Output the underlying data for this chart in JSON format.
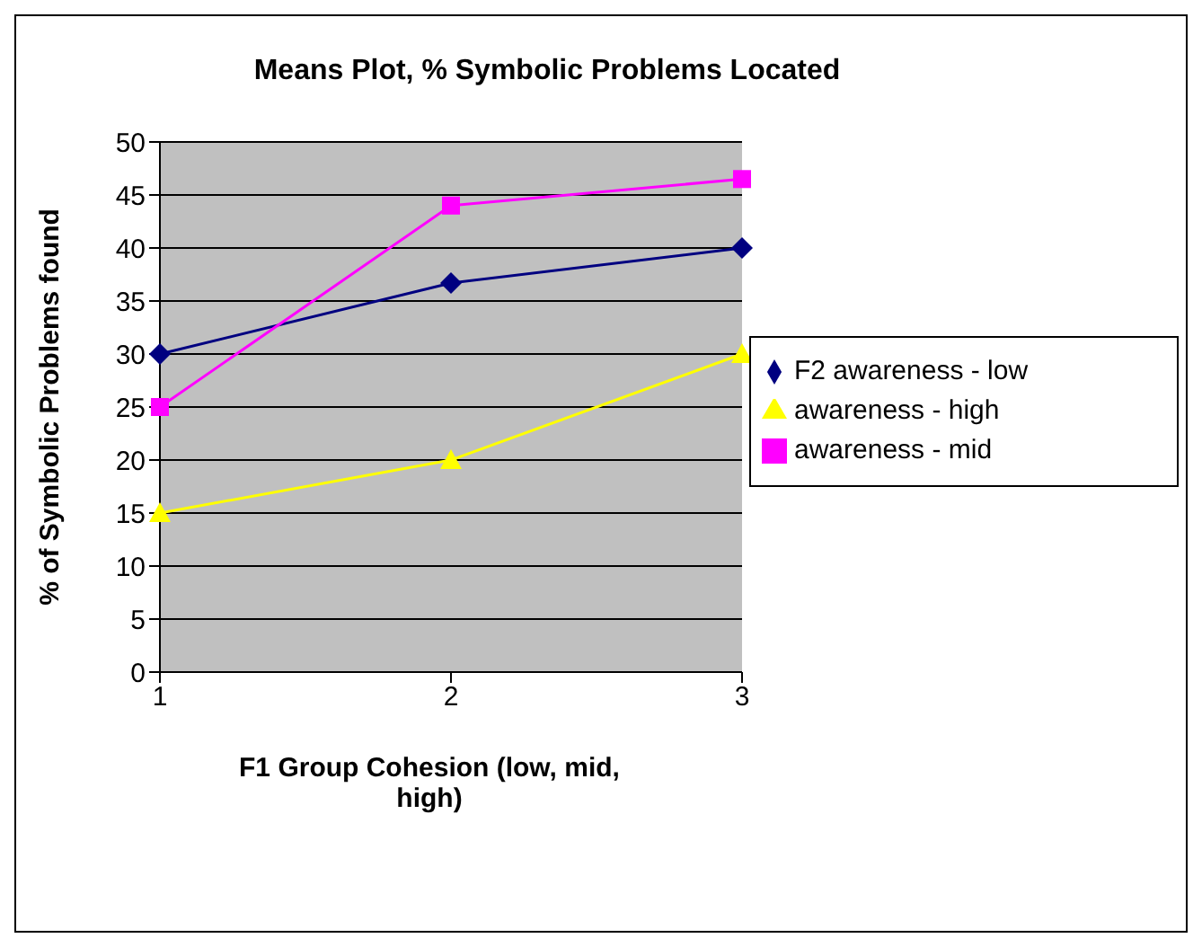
{
  "chart_data": {
    "type": "line",
    "title": "Means Plot, % Symbolic Problems Located",
    "xlabel": "F1 Group Cohesion (low, mid, high)",
    "ylabel": "% of Symbolic Problems found",
    "categories": [
      "1",
      "2",
      "3"
    ],
    "series": [
      {
        "name": "F2 awareness - low",
        "color": "#000080",
        "marker": "diamond",
        "values": [
          30,
          36.7,
          40
        ]
      },
      {
        "name": "awareness - mid",
        "color": "#ff00ff",
        "marker": "square",
        "values": [
          25,
          44,
          46.5
        ]
      },
      {
        "name": "awareness - high",
        "color": "#ffff00",
        "marker": "triangle",
        "values": [
          15,
          20,
          30
        ]
      }
    ],
    "ylim": [
      0,
      50
    ],
    "yticks": [
      0,
      5,
      10,
      15,
      20,
      25,
      30,
      35,
      40,
      45,
      50
    ],
    "grid": "y",
    "legend": "right"
  }
}
